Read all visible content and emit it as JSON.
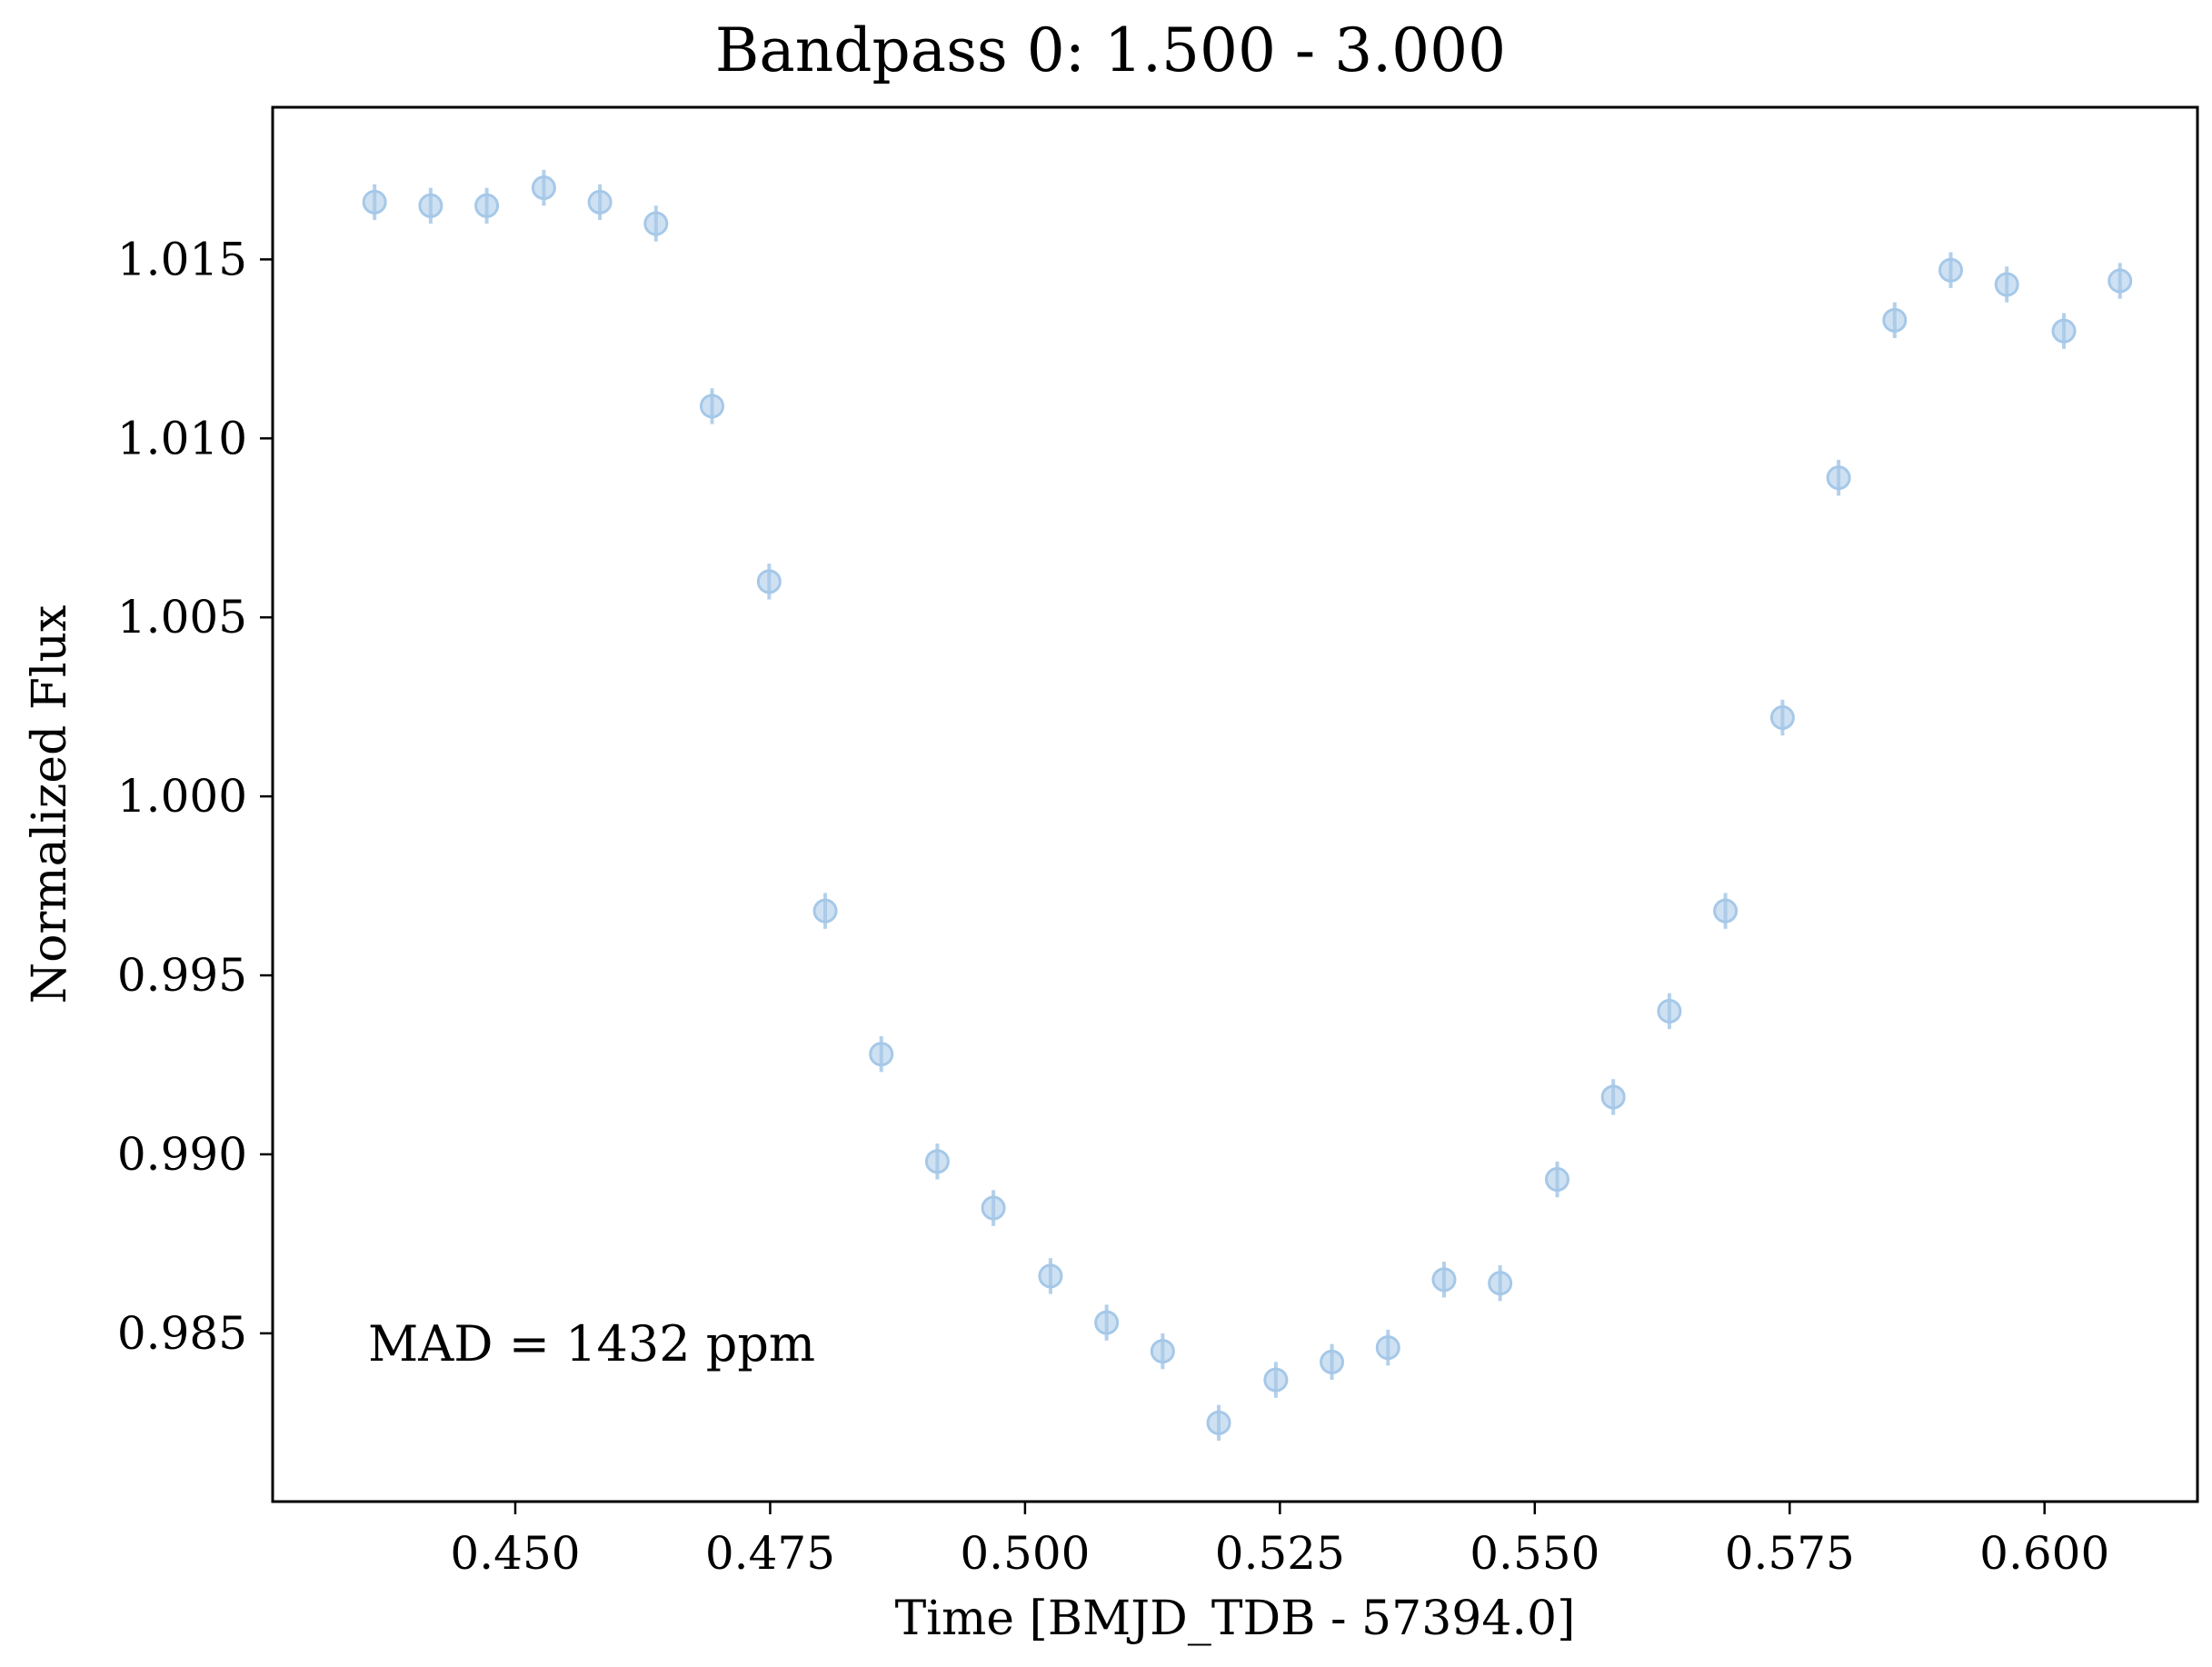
{
  "chart_data": {
    "type": "scatter",
    "title": "Bandpass 0: 1.500 - 3.000",
    "xlabel": "Time [BMJD_TDB - 57394.0]",
    "ylabel": "Normalized Flux",
    "annotation": "MAD = 1432 ppm",
    "xlim": [
      0.4262,
      0.615
    ],
    "ylim": [
      0.9803,
      1.01925
    ],
    "xticks": [
      0.45,
      0.475,
      0.5,
      0.525,
      0.55,
      0.575,
      0.6
    ],
    "xtick_labels": [
      "0.450",
      "0.475",
      "0.500",
      "0.525",
      "0.550",
      "0.575",
      "0.600"
    ],
    "yticks": [
      0.985,
      0.99,
      0.995,
      1.0,
      1.005,
      1.01,
      1.015
    ],
    "ytick_labels": [
      "0.985",
      "0.990",
      "0.995",
      "1.000",
      "1.005",
      "1.010",
      "1.015"
    ],
    "grid": false,
    "marker_color": "#a6c8e8",
    "error_bar_color": "#a6c8e8",
    "x": [
      0.4362,
      0.4417,
      0.4472,
      0.4528,
      0.4583,
      0.4638,
      0.4693,
      0.4749,
      0.4804,
      0.4859,
      0.4914,
      0.4969,
      0.5025,
      0.508,
      0.5135,
      0.519,
      0.5246,
      0.5301,
      0.5356,
      0.5411,
      0.5466,
      0.5522,
      0.5577,
      0.5632,
      0.5687,
      0.5743,
      0.5798,
      0.5853,
      0.5908,
      0.5963,
      0.6019,
      0.6074
    ],
    "y": [
      1.0166,
      1.0165,
      1.0165,
      1.017,
      1.0166,
      1.016,
      1.0109,
      1.006,
      0.9968,
      0.9928,
      0.9898,
      0.9885,
      0.9866,
      0.9853,
      0.9845,
      0.9825,
      0.9837,
      0.9842,
      0.9846,
      0.9865,
      0.9864,
      0.9893,
      0.9916,
      0.994,
      0.9968,
      1.0022,
      1.0089,
      1.0133,
      1.0147,
      1.0143,
      1.013,
      1.0144
    ],
    "yerr": [
      0.0005,
      0.0005,
      0.0005,
      0.0005,
      0.0005,
      0.0005,
      0.0005,
      0.0005,
      0.0005,
      0.0005,
      0.0005,
      0.0005,
      0.0005,
      0.0005,
      0.0005,
      0.0005,
      0.0005,
      0.0005,
      0.0005,
      0.0005,
      0.0005,
      0.0005,
      0.0005,
      0.0005,
      0.0005,
      0.0005,
      0.0005,
      0.0005,
      0.0005,
      0.0005,
      0.0005,
      0.0005
    ]
  }
}
